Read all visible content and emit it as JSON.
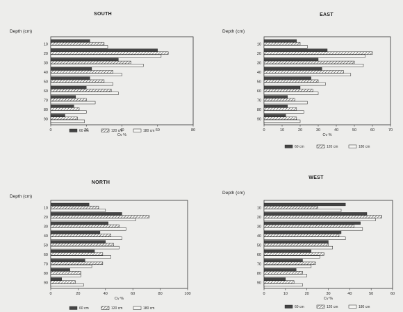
{
  "chart_data": [
    {
      "type": "bar",
      "orientation": "horizontal",
      "title": "SOUTH",
      "ylabel": "Depth (cm)",
      "xlabel": "Cv %",
      "categories": [
        "10",
        "20",
        "30",
        "40",
        "50",
        "60",
        "70",
        "80",
        "90"
      ],
      "xlim": [
        0,
        80
      ],
      "xticks": [
        "0",
        "20",
        "40",
        "60",
        "80"
      ],
      "legend": "bottom",
      "series": [
        {
          "name": "60 cm",
          "values": [
            22,
            60,
            38,
            23,
            22,
            20,
            14,
            13,
            8
          ]
        },
        {
          "name": "120 cm",
          "values": [
            30,
            66,
            45,
            35,
            30,
            34,
            20,
            16,
            15
          ]
        },
        {
          "name": "180 cm",
          "values": [
            32,
            62,
            52,
            40,
            35,
            38,
            25,
            20,
            19
          ]
        }
      ]
    },
    {
      "type": "bar",
      "orientation": "horizontal",
      "title": "EAST",
      "ylabel": "Depth (cm)",
      "xlabel": "Cv %",
      "categories": [
        "10",
        "20",
        "30",
        "40",
        "50",
        "60",
        "70",
        "80",
        "90"
      ],
      "xlim": [
        0,
        70
      ],
      "xticks": [
        "0",
        "10",
        "20",
        "30",
        "40",
        "50",
        "60",
        "70"
      ],
      "legend": "bottom",
      "series": [
        {
          "name": "60 cm",
          "values": [
            18,
            35,
            30,
            32,
            26,
            20,
            13,
            13,
            12
          ]
        },
        {
          "name": "120 cm",
          "values": [
            20,
            60,
            50,
            44,
            30,
            27,
            17,
            18,
            18
          ]
        },
        {
          "name": "180 cm",
          "values": [
            24,
            56,
            55,
            48,
            34,
            30,
            24,
            22,
            20
          ]
        }
      ]
    },
    {
      "type": "bar",
      "orientation": "horizontal",
      "title": "NORTH",
      "ylabel": "Depth (cm)",
      "xlabel": "Cv %",
      "categories": [
        "10",
        "20",
        "30",
        "40",
        "50",
        "60",
        "70",
        "80",
        "90"
      ],
      "xlim": [
        0,
        100
      ],
      "xticks": [
        "0",
        "20",
        "40",
        "60",
        "80",
        "100"
      ],
      "legend": "bottom",
      "series": [
        {
          "name": "60 cm",
          "values": [
            28,
            52,
            42,
            36,
            40,
            32,
            25,
            14,
            8
          ]
        },
        {
          "name": "120 cm",
          "values": [
            35,
            72,
            50,
            44,
            46,
            38,
            38,
            22,
            18
          ]
        },
        {
          "name": "180 cm",
          "values": [
            40,
            62,
            55,
            52,
            50,
            44,
            30,
            22,
            24
          ]
        }
      ]
    },
    {
      "type": "bar",
      "orientation": "horizontal",
      "title": "WEST",
      "ylabel": "Depth (cm)",
      "xlabel": "Cv %",
      "categories": [
        "10",
        "20",
        "30",
        "40",
        "50",
        "60",
        "70",
        "80",
        "90"
      ],
      "xlim": [
        0,
        60
      ],
      "xticks": [
        "0",
        "10",
        "20",
        "30",
        "40",
        "50",
        "60"
      ],
      "legend": "bottom",
      "series": [
        {
          "name": "60 cm",
          "values": [
            38,
            48,
            45,
            36,
            30,
            22,
            18,
            15,
            10
          ]
        },
        {
          "name": "120 cm",
          "values": [
            25,
            55,
            42,
            35,
            30,
            28,
            24,
            18,
            14
          ]
        },
        {
          "name": "180 cm",
          "values": [
            36,
            52,
            46,
            38,
            32,
            26,
            22,
            20,
            18
          ]
        }
      ]
    }
  ]
}
